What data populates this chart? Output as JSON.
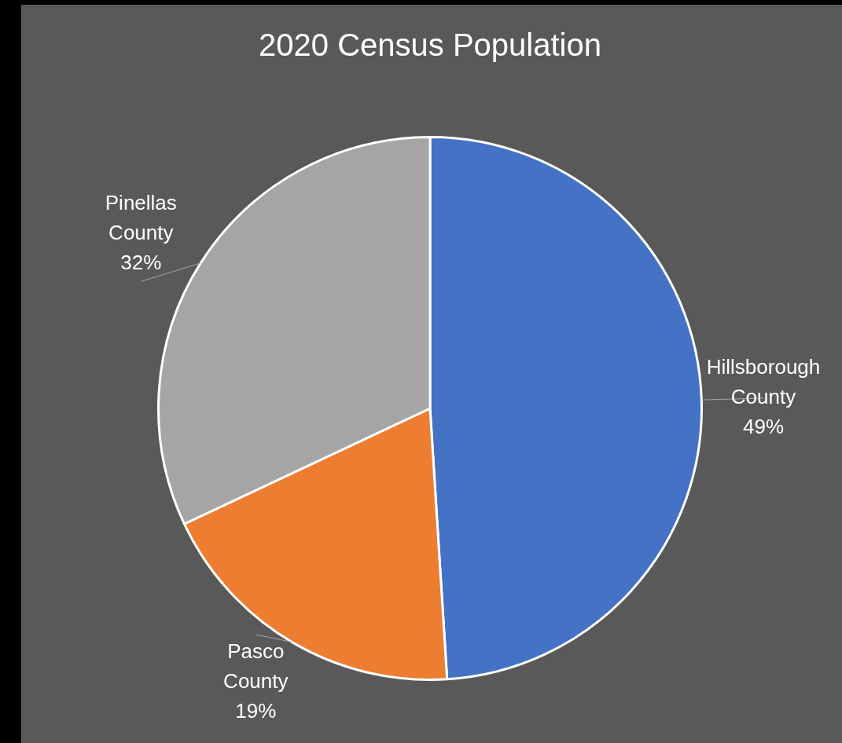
{
  "chart_data": {
    "type": "pie",
    "title": "2020 Census Population",
    "categories": [
      "Hillsborough County",
      "Pasco County",
      "Pinellas County"
    ],
    "values": [
      49,
      19,
      32
    ],
    "colors": [
      "#4472c4",
      "#ed7d31",
      "#a5a5a5"
    ],
    "value_labels": [
      "49%",
      "19%",
      "32%"
    ],
    "legend": false
  }
}
